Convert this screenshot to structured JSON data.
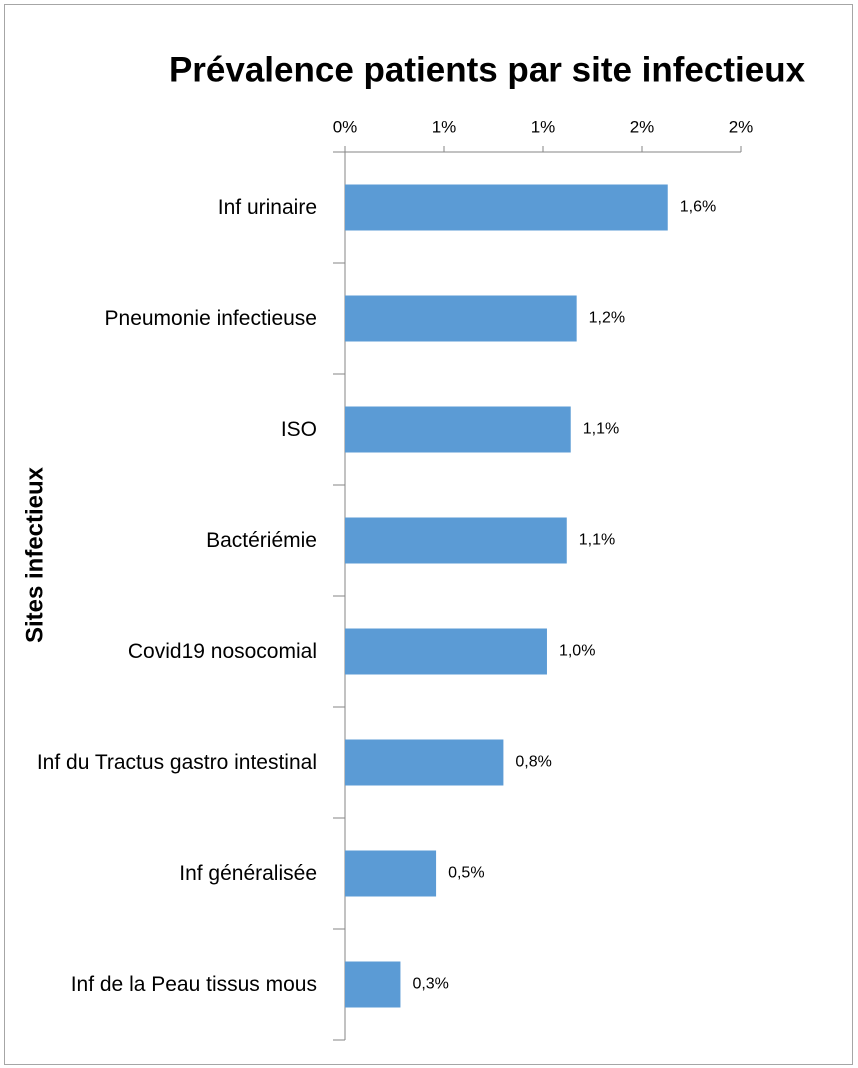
{
  "chart_data": {
    "type": "barh",
    "title": "Prévalence patients par site infectieux",
    "y_label": "Sites infectieux",
    "categories": [
      "Inf urinaire",
      "Pneumonie infectieuse",
      "ISO",
      "Bactériémie",
      "Covid19 nosocomial",
      "Inf du Tractus gastro intestinal",
      "Inf généralisée",
      "Inf de la Peau tissus mous"
    ],
    "values": [
      1.63,
      1.17,
      1.14,
      1.12,
      1.02,
      0.8,
      0.46,
      0.28
    ],
    "value_labels": [
      "1,6%",
      "1,2%",
      "1,1%",
      "1,1%",
      "1,0%",
      "0,8%",
      "0,5%",
      "0,3%"
    ],
    "color": "#5b9bd5",
    "xlim": [
      0,
      2
    ],
    "xticks": [
      {
        "value": 0,
        "label": "0%"
      },
      {
        "value": 0.5,
        "label": "1%"
      },
      {
        "value": 1,
        "label": "1%"
      },
      {
        "value": 1.5,
        "label": "2%"
      },
      {
        "value": 2,
        "label": "2%"
      }
    ]
  }
}
